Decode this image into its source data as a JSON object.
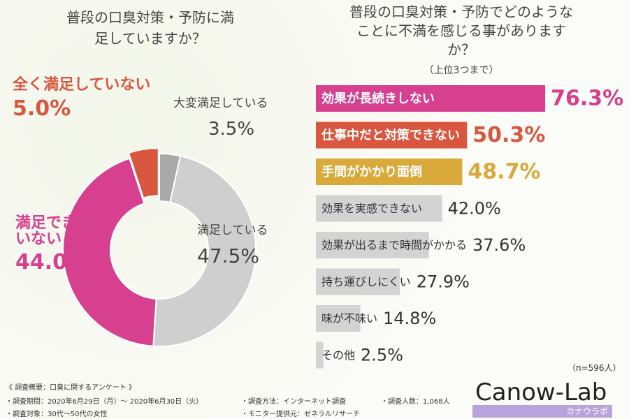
{
  "chart_data": [
    {
      "type": "donut",
      "title": "普段の口臭対策・予防に満足していますか？",
      "categories": [
        "大変満足している",
        "満足している",
        "満足できていない",
        "全く満足していない"
      ],
      "values": [
        3.5,
        47.5,
        44.0,
        5.0
      ],
      "value_labels": [
        "3.5%",
        "47.5%",
        "44.0%",
        "5.0%"
      ],
      "colors": [
        "#a9a9a9",
        "#cfcfcf",
        "#d6408f",
        "#d9573f"
      ]
    },
    {
      "type": "hbar",
      "title": "普段の口臭対策・予防でどのようなことに不満を感じる事がありますか？",
      "subtitle": "（上位3つまで）",
      "categories": [
        "効果が長続きしない",
        "仕事中だと対策できない",
        "手間がかかり面倒",
        "効果を実感できない",
        "効果が出るまで時間がかかる",
        "持ち運びしにくい",
        "味が不味い",
        "その他"
      ],
      "values": [
        76.3,
        50.3,
        48.7,
        42.0,
        37.6,
        27.9,
        14.8,
        2.5
      ],
      "value_labels": [
        "76.3%",
        "50.3%",
        "48.7%",
        "42.0%",
        "37.6%",
        "27.9%",
        "14.8%",
        "2.5%"
      ],
      "colors": [
        "#d6408f",
        "#d9573f",
        "#d9a93a",
        "#d3d3d3",
        "#d3d3d3",
        "#d3d3d3",
        "#d3d3d3",
        "#d3d3d3"
      ],
      "xlim": [
        0,
        100
      ],
      "note": "（n=596人）"
    }
  ],
  "notes": [
    "《 調査概要：口臭に関するアンケート 》",
    "・調査期間：2020年6月29日（月）～ 2020年6月30日（火）",
    "・調査対象：30代～50代の女性",
    "・調査方法：インターネット調査",
    "・モニター提供元：ゼネラルリサーチ",
    "・調査人数：1,068人"
  ],
  "brand": {
    "name": "Canow-Lab",
    "kana": "カナウラボ"
  }
}
